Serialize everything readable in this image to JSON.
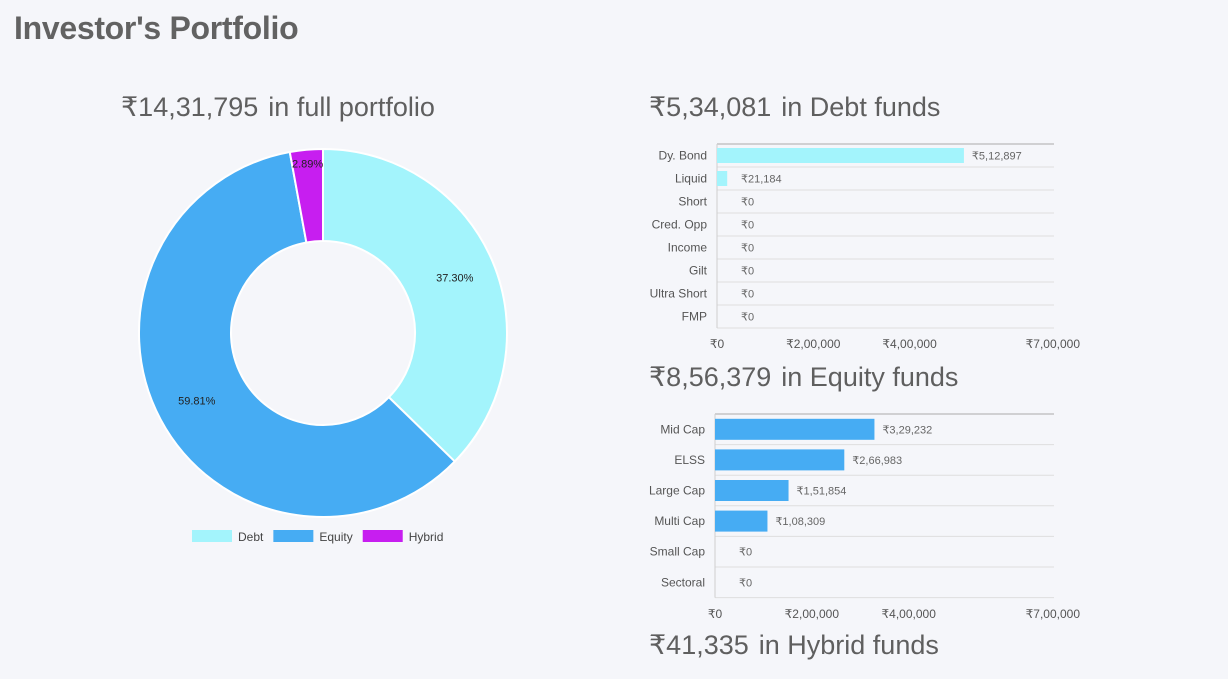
{
  "page": {
    "title": "Investor's Portfolio"
  },
  "headings": {
    "total": {
      "amount": "₹14,31,795",
      "text": "in full portfolio"
    },
    "debt": {
      "amount": "₹5,34,081",
      "text": "in Debt funds"
    },
    "equity": {
      "amount": "₹8,56,379",
      "text": "in Equity funds"
    },
    "hybrid": {
      "amount": "₹41,335",
      "text": "in Hybrid funds"
    }
  },
  "colors": {
    "debt": "#a3f4fc",
    "equity": "#46acf3",
    "hybrid": "#c71ef0"
  },
  "chart_data": [
    {
      "type": "pie",
      "variant": "donut",
      "title": "₹14,31,795 in full portfolio",
      "categories": [
        "Debt",
        "Equity",
        "Hybrid"
      ],
      "values": [
        37.3,
        59.81,
        2.89
      ],
      "labels": [
        "37.30%",
        "59.81%",
        "2.89%"
      ],
      "colors": [
        "#a3f4fc",
        "#46acf3",
        "#c71ef0"
      ],
      "legend": "bottom"
    },
    {
      "type": "bar",
      "orientation": "horizontal",
      "title": "₹5,34,081 in Debt funds",
      "categories": [
        "Dy. Bond",
        "Liquid",
        "Short",
        "Cred. Opp",
        "Income",
        "Gilt",
        "Ultra Short",
        "FMP"
      ],
      "values": [
        512897,
        21184,
        0,
        0,
        0,
        0,
        0,
        0
      ],
      "value_labels": [
        "₹5,12,897",
        "₹21,184",
        "₹0",
        "₹0",
        "₹0",
        "₹0",
        "₹0",
        "₹0"
      ],
      "xlim": [
        0,
        700000
      ],
      "ticks": [
        0,
        200000,
        400000,
        700000
      ],
      "tick_labels": [
        "₹0",
        "₹2,00,000",
        "₹4,00,000",
        "₹7,00,000"
      ],
      "color": "#a3f4fc"
    },
    {
      "type": "bar",
      "orientation": "horizontal",
      "title": "₹8,56,379 in Equity funds",
      "categories": [
        "Mid Cap",
        "ELSS",
        "Large Cap",
        "Multi Cap",
        "Small Cap",
        "Sectoral"
      ],
      "values": [
        329232,
        266983,
        151854,
        108309,
        0,
        0
      ],
      "value_labels": [
        "₹3,29,232",
        "₹2,66,983",
        "₹1,51,854",
        "₹1,08,309",
        "₹0",
        "₹0"
      ],
      "xlim": [
        0,
        700000
      ],
      "ticks": [
        0,
        200000,
        400000,
        700000
      ],
      "tick_labels": [
        "₹0",
        "₹2,00,000",
        "₹4,00,000",
        "₹7,00,000"
      ],
      "color": "#46acf3"
    }
  ]
}
